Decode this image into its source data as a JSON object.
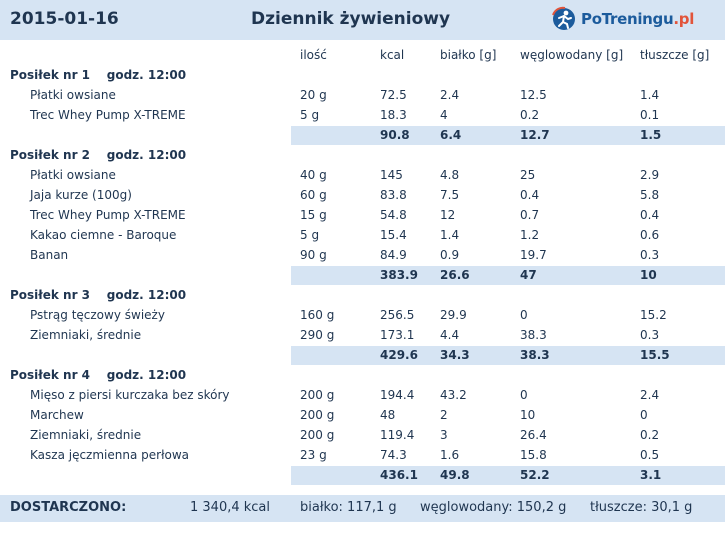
{
  "header": {
    "date": "2015-01-16",
    "title": "Dziennik żywieniowy",
    "logo_text_main": "PoTreningu",
    "logo_text_tld": ".pl"
  },
  "columns": {
    "qty": "ilość",
    "kcal": "kcal",
    "protein": "białko [g]",
    "carbs": "węglowodany [g]",
    "fat": "tłuszcze [g]"
  },
  "meals": [
    {
      "header": "Posiłek nr 1    godz. 12:00",
      "items": [
        {
          "name": "Płatki owsiane",
          "qty": "20 g",
          "kcal": "72.5",
          "protein": "2.4",
          "carbs": "12.5",
          "fat": "1.4"
        },
        {
          "name": "Trec Whey Pump X-TREME",
          "qty": "5 g",
          "kcal": "18.3",
          "protein": "4",
          "carbs": "0.2",
          "fat": "0.1"
        }
      ],
      "totals": {
        "kcal": "90.8",
        "protein": "6.4",
        "carbs": "12.7",
        "fat": "1.5"
      }
    },
    {
      "header": "Posiłek nr 2    godz. 12:00",
      "items": [
        {
          "name": "Płatki owsiane",
          "qty": "40 g",
          "kcal": "145",
          "protein": "4.8",
          "carbs": "25",
          "fat": "2.9"
        },
        {
          "name": "Jaja kurze (100g)",
          "qty": "60 g",
          "kcal": "83.8",
          "protein": "7.5",
          "carbs": "0.4",
          "fat": "5.8"
        },
        {
          "name": "Trec Whey Pump X-TREME",
          "qty": "15 g",
          "kcal": "54.8",
          "protein": "12",
          "carbs": "0.7",
          "fat": "0.4"
        },
        {
          "name": "Kakao ciemne - Baroque",
          "qty": "5 g",
          "kcal": "15.4",
          "protein": "1.4",
          "carbs": "1.2",
          "fat": "0.6"
        },
        {
          "name": "Banan",
          "qty": "90 g",
          "kcal": "84.9",
          "protein": "0.9",
          "carbs": "19.7",
          "fat": "0.3"
        }
      ],
      "totals": {
        "kcal": "383.9",
        "protein": "26.6",
        "carbs": "47",
        "fat": "10"
      }
    },
    {
      "header": "Posiłek nr 3    godz. 12:00",
      "items": [
        {
          "name": "Pstrąg tęczowy świeży",
          "qty": "160 g",
          "kcal": "256.5",
          "protein": "29.9",
          "carbs": "0",
          "fat": "15.2"
        },
        {
          "name": "Ziemniaki, średnie",
          "qty": "290 g",
          "kcal": "173.1",
          "protein": "4.4",
          "carbs": "38.3",
          "fat": "0.3"
        }
      ],
      "totals": {
        "kcal": "429.6",
        "protein": "34.3",
        "carbs": "38.3",
        "fat": "15.5"
      }
    },
    {
      "header": "Posiłek nr 4    godz. 12:00",
      "items": [
        {
          "name": "Mięso z piersi kurczaka bez skóry",
          "qty": "200 g",
          "kcal": "194.4",
          "protein": "43.2",
          "carbs": "0",
          "fat": "2.4"
        },
        {
          "name": "Marchew",
          "qty": "200 g",
          "kcal": "48",
          "protein": "2",
          "carbs": "10",
          "fat": "0"
        },
        {
          "name": "Ziemniaki, średnie",
          "qty": "200 g",
          "kcal": "119.4",
          "protein": "3",
          "carbs": "26.4",
          "fat": "0.2"
        },
        {
          "name": "Kasza jęczmienna perłowa",
          "qty": "23 g",
          "kcal": "74.3",
          "protein": "1.6",
          "carbs": "15.8",
          "fat": "0.5"
        }
      ],
      "totals": {
        "kcal": "436.1",
        "protein": "49.8",
        "carbs": "52.2",
        "fat": "3.1"
      }
    }
  ],
  "footer": {
    "label": "DOSTARCZONO:",
    "kcal": "1 340,4 kcal",
    "protein": "białko: 117,1 g",
    "carbs": "węglowodany: 150,2 g",
    "fat": "tłuszcze: 30,1 g"
  }
}
